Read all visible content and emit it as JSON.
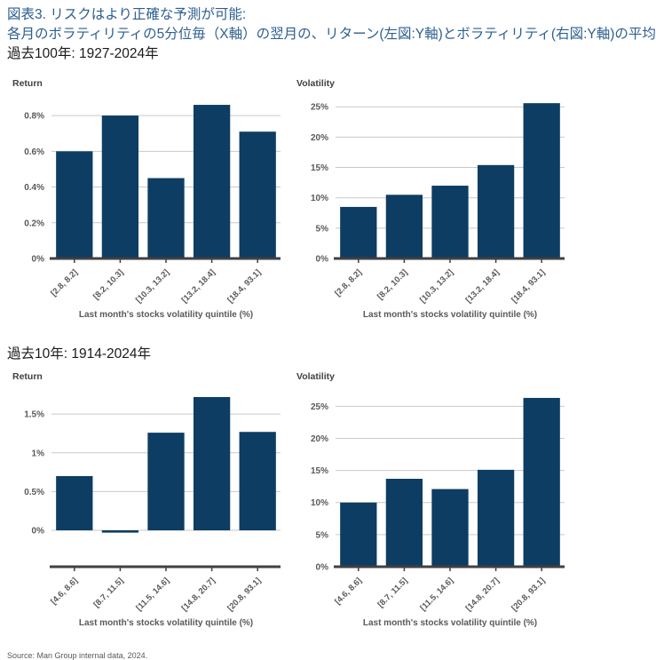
{
  "figure": {
    "title": "図表3. リスクはより正確な予測が可能:",
    "subtitle": "各月のボラティリティの5分位毎（X軸）の翌月の、リターン(左図:Y軸)とボラティリティ(右図:Y軸)の平均",
    "period_100y_label": "過去100年: 1927-2024年",
    "period_10y_label": "過去10年: 1914-2024年",
    "source": "Source: Man Group internal data, 2024."
  },
  "colors": {
    "bar": "#0d3d63",
    "title_blue": "#2d5f90",
    "grid": "#c9c9c9",
    "axis": "#414042",
    "tick_text": "#58595b"
  },
  "chart_data": [
    {
      "type": "bar",
      "title": "Return",
      "categories": [
        "[2.8, 8.2]",
        "[8.2, 10.3]",
        "[10.3, 13.2]",
        "[13.2, 18.4]",
        "[18.4, 93.1]"
      ],
      "values": [
        0.6,
        0.8,
        0.45,
        0.86,
        0.71
      ],
      "xlabel": "Last month's stocks volatility quintile (%)",
      "ylabel": "Return",
      "ylim": [
        0,
        0.9
      ],
      "yticks": [
        0,
        0.2,
        0.4,
        0.6,
        0.8
      ],
      "ytick_labels": [
        "0%",
        "0.2%",
        "0.4%",
        "0.6%",
        "0.8%"
      ],
      "grid": true,
      "legend": "none"
    },
    {
      "type": "bar",
      "title": "Volatility",
      "categories": [
        "[2.8, 8.2]",
        "[8.2, 10.3]",
        "[10.3, 13.2]",
        "[13.2, 18.4]",
        "[18.4, 93.1]"
      ],
      "values": [
        8.5,
        10.5,
        12.0,
        15.4,
        25.6
      ],
      "xlabel": "Last month's stocks volatility quintile (%)",
      "ylabel": "Volatility",
      "ylim": [
        0,
        26.5
      ],
      "yticks": [
        0,
        5,
        10,
        15,
        20,
        25
      ],
      "ytick_labels": [
        "0%",
        "5%",
        "10%",
        "15%",
        "20%",
        "25%"
      ],
      "grid": true,
      "legend": "none"
    },
    {
      "type": "bar",
      "title": "Return",
      "categories": [
        "[4.6, 8.6]",
        "[8.7, 11.5]",
        "[11.5, 14.6]",
        "[14.8, 20.7]",
        "[20.8, 93.1]"
      ],
      "values": [
        0.7,
        -0.03,
        1.26,
        1.72,
        1.27
      ],
      "xlabel": "Last month's stocks volatility quintile (%)",
      "ylabel": "Return",
      "ylim": [
        -0.47,
        1.8
      ],
      "yticks": [
        0,
        0.5,
        1,
        1.5
      ],
      "ytick_labels": [
        "0%",
        "0.5%",
        "1%",
        "1.5%"
      ],
      "grid": true,
      "legend": "none"
    },
    {
      "type": "bar",
      "title": "Volatility",
      "categories": [
        "[4.6, 8.6]",
        "[8.7, 11.5]",
        "[11.5, 14.6]",
        "[14.8, 20.7]",
        "[20.8, 93.1]"
      ],
      "values": [
        10.0,
        13.7,
        12.1,
        15.1,
        26.3
      ],
      "xlabel": "Last month's stocks volatility quintile (%)",
      "ylabel": "Volatility",
      "ylim": [
        0,
        27.4
      ],
      "yticks": [
        0,
        5,
        10,
        15,
        20,
        25
      ],
      "ytick_labels": [
        "0%",
        "5%",
        "10%",
        "15%",
        "20%",
        "25%"
      ],
      "grid": true,
      "legend": "none"
    }
  ]
}
